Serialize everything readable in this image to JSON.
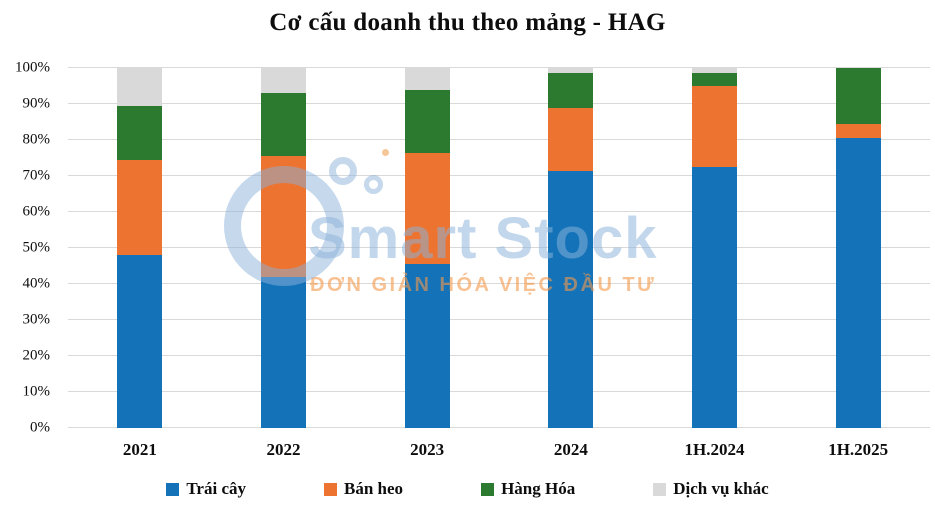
{
  "title": "Cơ cấu doanh thu theo mảng - HAG",
  "watermark": {
    "brand": "Smart Stock",
    "tagline": "ĐƠN GIẢN HÓA VIỆC ĐẦU TƯ"
  },
  "colors": {
    "grid": "#d9d9d9",
    "text": "#0d0d0d",
    "watermark_blue": "#8bb2da",
    "watermark_orange": "#f3984a"
  },
  "chart_data": {
    "type": "bar",
    "stacked": true,
    "percent_stacked": true,
    "title": "Cơ cấu doanh thu theo mảng - HAG",
    "xlabel": "",
    "ylabel": "",
    "categories": [
      "2021",
      "2022",
      "2023",
      "2024",
      "1H.2024",
      "1H.2025"
    ],
    "series": [
      {
        "name": "Trái cây",
        "color": "#1473b8",
        "values": [
          48.0,
          42.0,
          45.5,
          71.5,
          72.5,
          80.5
        ]
      },
      {
        "name": "Bán heo",
        "color": "#ed7331",
        "values": [
          26.5,
          33.5,
          31.0,
          17.5,
          22.5,
          4.0
        ]
      },
      {
        "name": "Hàng Hóa",
        "color": "#2b7a2f",
        "values": [
          15.0,
          17.5,
          17.5,
          9.5,
          3.5,
          15.5
        ]
      },
      {
        "name": "Dịch vụ khác",
        "color": "#d9d9d9",
        "values": [
          10.5,
          7.0,
          6.0,
          1.5,
          1.5,
          0.0
        ]
      }
    ],
    "ylim": [
      0,
      100
    ],
    "ytick_step": 10,
    "yticks": [
      "0%",
      "10%",
      "20%",
      "30%",
      "40%",
      "50%",
      "60%",
      "70%",
      "80%",
      "90%",
      "100%"
    ],
    "grid": true,
    "legend_position": "bottom"
  }
}
